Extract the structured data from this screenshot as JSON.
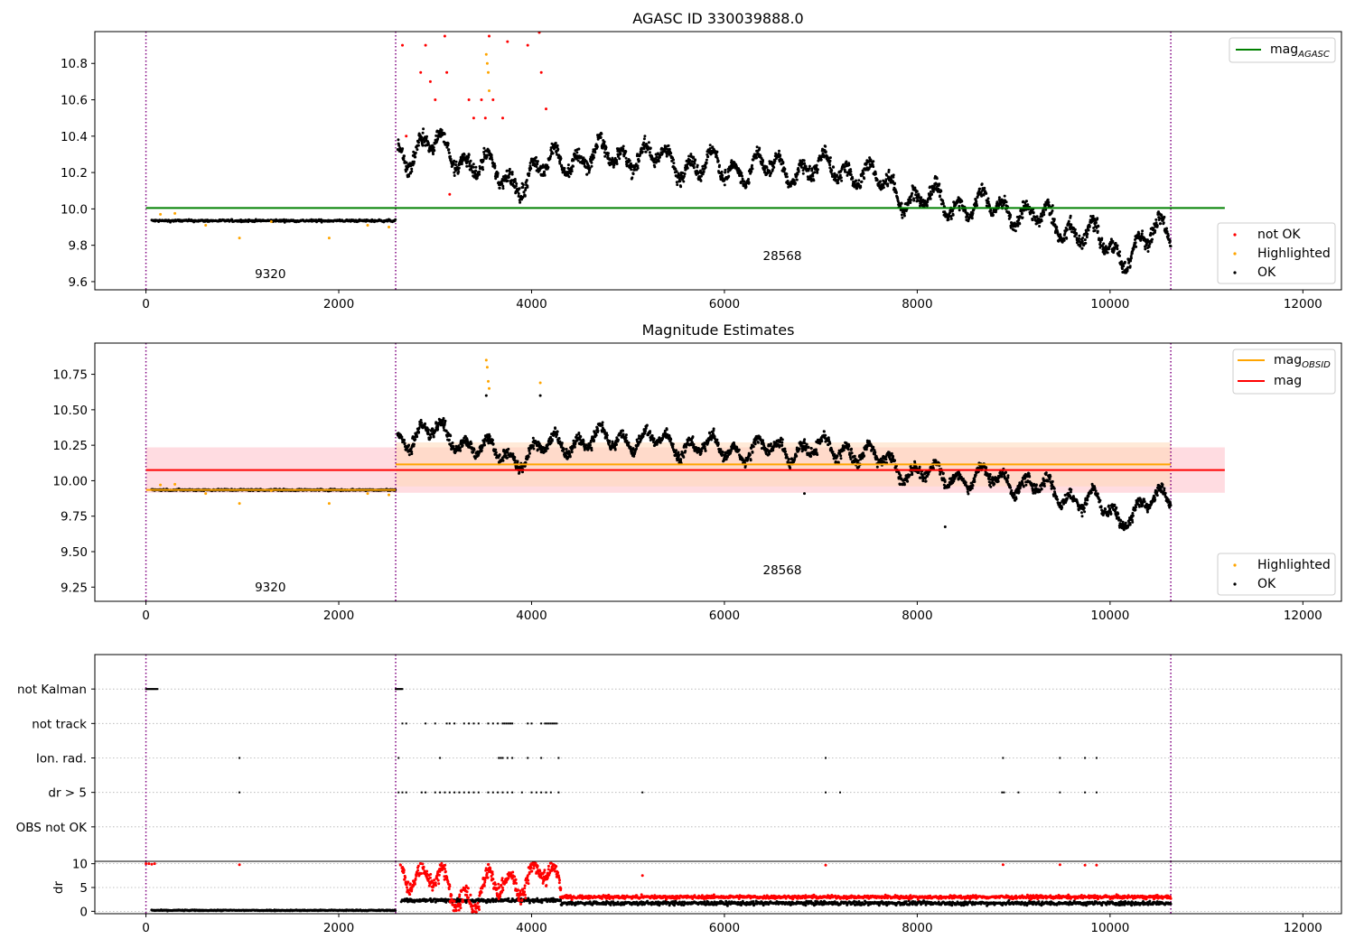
{
  "colors": {
    "ok": "#000000",
    "not_ok": "#ff0000",
    "highlighted": "#ffa500",
    "agasc_line": "#008000",
    "mag_line": "#ff0000",
    "mag_obsid_line": "#ffa500",
    "obs_boundary": "#800080",
    "mag_band": "#ffc0c8",
    "obsid_band": "#ffd8b8",
    "grid": "#b0b0b0"
  },
  "chart_data": [
    {
      "id": "agasc",
      "type": "scatter",
      "title": "AGASC ID 330039888.0",
      "xlabel": "",
      "ylabel": "",
      "xlim": [
        -530,
        12400
      ],
      "ylim": [
        9.555,
        10.975
      ],
      "xticks": [
        0,
        2000,
        4000,
        6000,
        8000,
        10000,
        12000
      ],
      "yticks": [
        9.6,
        9.8,
        10.0,
        10.2,
        10.4,
        10.6,
        10.8
      ],
      "ytick_labels": [
        "9.6",
        "9.8",
        "10.0",
        "10.2",
        "10.4",
        "10.6",
        "10.8"
      ],
      "obs_boundaries": [
        0,
        2590,
        10630
      ],
      "obsid_annotations": [
        {
          "label": "9320",
          "x": 1290,
          "y": 9.62
        },
        {
          "label": "28568",
          "x": 6600,
          "y": 9.72
        }
      ],
      "lines": [
        {
          "name": "mag_AGASC",
          "y": 10.005,
          "x_range": [
            0,
            11190
          ],
          "color_key": "agasc_line"
        }
      ],
      "line_legend": [
        {
          "label": "mag",
          "sub": "AGASC",
          "color_key": "agasc_line"
        }
      ],
      "scatter_legend": [
        {
          "label": "not OK",
          "color_key": "not_ok"
        },
        {
          "label": "Highlighted",
          "color_key": "highlighted"
        },
        {
          "label": "OK",
          "color_key": "ok"
        }
      ],
      "series": [
        {
          "name": "OK",
          "color_key": "ok",
          "segments": [
            {
              "x_range": [
                60,
                2590
              ],
              "mean": 9.935,
              "spread": 0.012
            },
            {
              "x_range": [
                2610,
                10630
              ],
              "trend": [
                [
                  2610,
                  10.3
                ],
                [
                  3000,
                  10.35
                ],
                [
                  3800,
                  10.15
                ],
                [
                  4300,
                  10.27
                ],
                [
                  5000,
                  10.3
                ],
                [
                  6000,
                  10.22
                ],
                [
                  7300,
                  10.22
                ],
                [
                  8000,
                  10.05
                ],
                [
                  9000,
                  10.0
                ],
                [
                  9800,
                  9.85
                ],
                [
                  10100,
                  9.75
                ],
                [
                  10630,
                  9.9
                ]
              ],
              "spread": 0.07
            }
          ]
        },
        {
          "name": "not OK",
          "color_key": "not_ok",
          "points": [
            [
              2660,
              10.9
            ],
            [
              2700,
              10.4
            ],
            [
              2800,
              10.98
            ],
            [
              2850,
              10.75
            ],
            [
              2900,
              10.9
            ],
            [
              2950,
              10.7
            ],
            [
              3000,
              10.6
            ],
            [
              3100,
              10.95
            ],
            [
              3120,
              10.75
            ],
            [
              3150,
              10.08
            ],
            [
              3350,
              10.6
            ],
            [
              3400,
              10.5
            ],
            [
              3480,
              10.6
            ],
            [
              3520,
              10.5
            ],
            [
              3560,
              10.95
            ],
            [
              3600,
              10.6
            ],
            [
              3700,
              10.5
            ],
            [
              3750,
              10.92
            ],
            [
              3960,
              10.9
            ],
            [
              4080,
              10.97
            ],
            [
              4100,
              10.75
            ],
            [
              4150,
              10.55
            ]
          ]
        },
        {
          "name": "Highlighted",
          "color_key": "highlighted",
          "points": [
            [
              150,
              9.97
            ],
            [
              300,
              9.975
            ],
            [
              620,
              9.91
            ],
            [
              970,
              9.84
            ],
            [
              1300,
              9.93
            ],
            [
              1900,
              9.84
            ],
            [
              2300,
              9.91
            ],
            [
              2520,
              9.9
            ],
            [
              3530,
              10.85
            ],
            [
              3540,
              10.8
            ],
            [
              3550,
              10.75
            ],
            [
              3560,
              10.65
            ]
          ]
        }
      ]
    },
    {
      "id": "magnitude",
      "type": "scatter",
      "title": "Magnitude Estimates",
      "xlabel": "",
      "ylabel": "",
      "xlim": [
        -530,
        12400
      ],
      "ylim": [
        9.15,
        10.97
      ],
      "xticks": [
        0,
        2000,
        4000,
        6000,
        8000,
        10000,
        12000
      ],
      "yticks": [
        9.25,
        9.5,
        9.75,
        10.0,
        10.25,
        10.5,
        10.75
      ],
      "ytick_labels": [
        "9.25",
        "9.50",
        "9.75",
        "10.00",
        "10.25",
        "10.50",
        "10.75"
      ],
      "obs_boundaries": [
        0,
        2590,
        10630
      ],
      "obsid_annotations": [
        {
          "label": "9320",
          "x": 1290,
          "y": 9.22
        },
        {
          "label": "28568",
          "x": 6600,
          "y": 9.34
        }
      ],
      "bands": [
        {
          "y_range": [
            9.915,
            10.235
          ],
          "x_range": [
            0,
            11190
          ],
          "color_key": "mag_band"
        },
        {
          "y_range": [
            9.96,
            10.27
          ],
          "x_range": [
            2590,
            10630
          ],
          "color_key": "obsid_band"
        }
      ],
      "lines": [
        {
          "name": "mag",
          "y": 10.075,
          "x_range": [
            0,
            11190
          ],
          "color_key": "mag_line"
        },
        {
          "name": "mag_OBSID",
          "y": 10.115,
          "x_range": [
            2590,
            10630
          ],
          "color_key": "mag_obsid_line"
        },
        {
          "name": "mag_OBSID_9320",
          "y": 9.935,
          "x_range": [
            0,
            2590
          ],
          "color_key": "mag_obsid_line"
        }
      ],
      "line_legend": [
        {
          "label": "mag",
          "sub": "OBSID",
          "color_key": "mag_obsid_line"
        },
        {
          "label": "mag",
          "sub": "",
          "color_key": "mag_line"
        }
      ],
      "scatter_legend": [
        {
          "label": "Highlighted",
          "color_key": "highlighted"
        },
        {
          "label": "OK",
          "color_key": "ok"
        }
      ],
      "series": [
        {
          "name": "OK",
          "color_key": "ok",
          "segments": [
            {
              "x_range": [
                60,
                2590
              ],
              "mean": 9.935,
              "spread": 0.012
            },
            {
              "x_range": [
                2610,
                10630
              ],
              "trend": [
                [
                  2610,
                  10.3
                ],
                [
                  3000,
                  10.35
                ],
                [
                  3800,
                  10.15
                ],
                [
                  4300,
                  10.27
                ],
                [
                  5000,
                  10.3
                ],
                [
                  6000,
                  10.22
                ],
                [
                  7300,
                  10.22
                ],
                [
                  8000,
                  10.05
                ],
                [
                  9000,
                  10.0
                ],
                [
                  9800,
                  9.85
                ],
                [
                  10100,
                  9.75
                ],
                [
                  10630,
                  9.9
                ]
              ],
              "spread": 0.07
            }
          ]
        },
        {
          "name": "Highlighted",
          "color_key": "highlighted",
          "points": [
            [
              150,
              9.97
            ],
            [
              300,
              9.975
            ],
            [
              620,
              9.91
            ],
            [
              970,
              9.84
            ],
            [
              1300,
              9.93
            ],
            [
              1900,
              9.84
            ],
            [
              2300,
              9.91
            ],
            [
              2520,
              9.9
            ],
            [
              3530,
              10.85
            ],
            [
              3540,
              10.8
            ],
            [
              3550,
              10.7
            ],
            [
              3560,
              10.65
            ],
            [
              4090,
              10.69
            ]
          ]
        },
        {
          "name": "OK outliers",
          "color_key": "ok",
          "points": [
            [
              8290,
              9.675
            ],
            [
              6830,
              9.91
            ],
            [
              3530,
              10.6
            ],
            [
              4090,
              10.6
            ]
          ]
        }
      ]
    },
    {
      "id": "flags",
      "type": "scatter",
      "xlim": [
        -530,
        12400
      ],
      "xticks": [],
      "obs_boundaries": [
        0,
        2590,
        10630
      ],
      "categories": [
        "not Kalman",
        "not track",
        "Ion. rad.",
        "dr > 5",
        "OBS not OK"
      ],
      "flag_points": {
        "not Kalman": [
          [
            0,
            120
          ],
          [
            2590,
            2660
          ]
        ],
        "not track": [
          2660,
          2700,
          2900,
          3000,
          3120,
          3150,
          3200,
          3300,
          3350,
          3400,
          3450,
          3550,
          3600,
          3650,
          3700,
          3720,
          3740,
          3760,
          3780,
          3800,
          3960,
          4000,
          4100,
          4140,
          4160,
          4180,
          4200,
          4220,
          4240,
          4260
        ],
        "Ion. rad.": [
          970,
          2620,
          3050,
          3660,
          3680,
          3700,
          3750,
          3800,
          3960,
          4100,
          4280,
          7050,
          8890,
          9480,
          9740,
          9860
        ],
        "dr > 5": [
          970,
          2620,
          2660,
          2700,
          2860,
          2900,
          3000,
          3050,
          3100,
          3150,
          3200,
          3250,
          3300,
          3350,
          3400,
          3450,
          3550,
          3600,
          3650,
          3700,
          3750,
          3800,
          3900,
          4000,
          4050,
          4100,
          4150,
          4200,
          4280,
          5150,
          7050,
          7200,
          8880,
          8900,
          9050,
          9480,
          9740,
          9860
        ],
        "OBS not OK": []
      }
    },
    {
      "id": "dr",
      "type": "scatter",
      "xlabel": "",
      "ylabel": "dr",
      "xlim": [
        -530,
        12400
      ],
      "ylim": [
        -0.5,
        10.5
      ],
      "xticks": [
        0,
        2000,
        4000,
        6000,
        8000,
        10000,
        12000
      ],
      "yticks": [
        0,
        5,
        10
      ],
      "obs_boundaries": [
        0,
        2590,
        10630
      ],
      "series": [
        {
          "name": "dr OK",
          "color_key": "ok",
          "segments": [
            {
              "x_range": [
                60,
                2590
              ],
              "mean": 0.2,
              "spread": 0.2
            },
            {
              "x_range": [
                2650,
                4300
              ],
              "mean": 2.3,
              "spread": 0.8
            },
            {
              "x_range": [
                4300,
                10630
              ],
              "mean": 1.7,
              "spread": 0.8
            }
          ]
        },
        {
          "name": "dr not OK",
          "color_key": "not_ok",
          "segments": [
            {
              "x_range": [
                2620,
                4300
              ],
              "trend": [
                [
                  2620,
                  9.8
                ],
                [
                  3000,
                  6
                ],
                [
                  3400,
                  3
                ],
                [
                  3700,
                  6
                ],
                [
                  4100,
                  8
                ],
                [
                  4300,
                  5
                ]
              ],
              "spread": 3.0
            },
            {
              "x_range": [
                4300,
                10630
              ],
              "mean": 3.0,
              "spread": 0.7
            }
          ],
          "points": [
            [
              0,
              10
            ],
            [
              30,
              10
            ],
            [
              60,
              9.9
            ],
            [
              90,
              10
            ],
            [
              970,
              9.8
            ],
            [
              5150,
              7.5
            ],
            [
              7050,
              9.7
            ],
            [
              8890,
              9.8
            ],
            [
              9480,
              9.8
            ],
            [
              9740,
              9.7
            ],
            [
              9860,
              9.7
            ]
          ]
        }
      ]
    }
  ]
}
